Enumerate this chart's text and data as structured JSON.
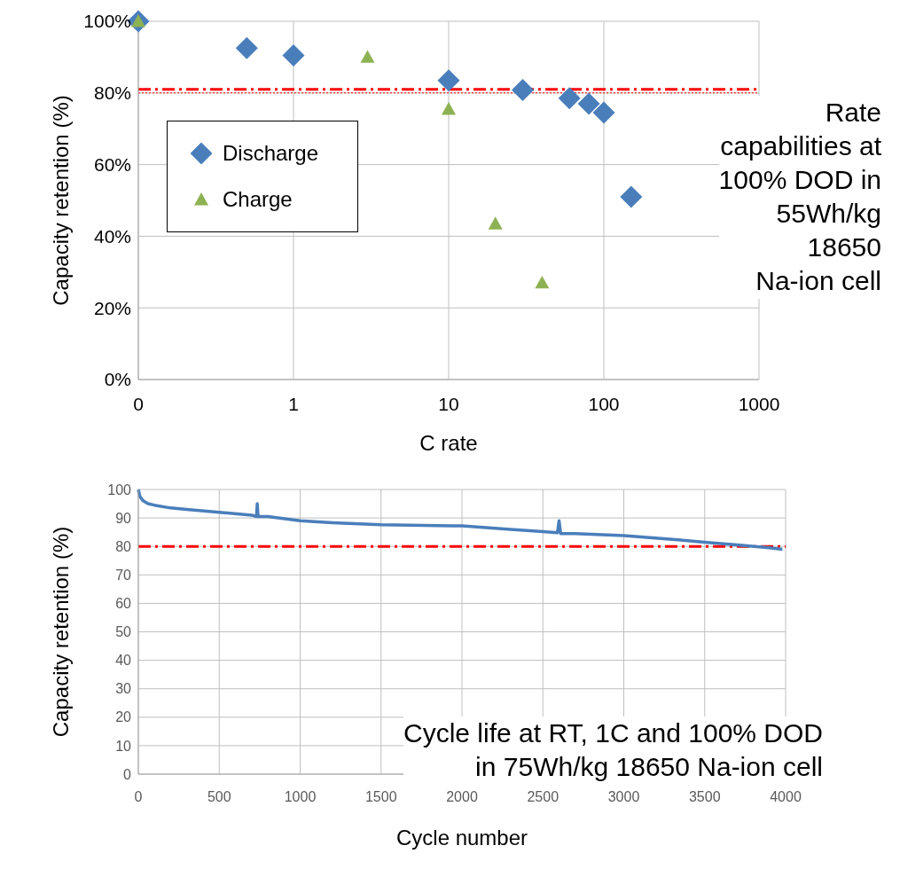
{
  "chart_data": [
    {
      "type": "scatter",
      "xlabel": "C rate",
      "ylabel": "Capacity retention (%)",
      "log": "x",
      "xlim": [
        0.1,
        1000
      ],
      "xticks": [
        {
          "value": 0.1,
          "label": "0"
        },
        1,
        10,
        100,
        1000
      ],
      "ylim": [
        0,
        100
      ],
      "yticks": [
        {
          "value": 0,
          "label": "0%"
        },
        {
          "value": 20,
          "label": "20%"
        },
        {
          "value": 40,
          "label": "40%"
        },
        {
          "value": 60,
          "label": "60%"
        },
        {
          "value": 80,
          "label": "80%"
        },
        {
          "value": 100,
          "label": "100%"
        }
      ],
      "grid": true,
      "legend": "left",
      "series": [
        {
          "name": "Discharge",
          "color": "#4a7ebb",
          "marker": "diamond",
          "x": [
            0.1,
            0.5,
            1,
            10,
            30,
            60,
            80,
            100,
            150
          ],
          "values": [
            100,
            92.5,
            90.5,
            83.5,
            80.8,
            78.5,
            77,
            74.5,
            51
          ]
        },
        {
          "name": "Charge",
          "color": "#8db254",
          "marker": "triangle",
          "x": [
            0.1,
            3,
            10,
            20,
            40
          ],
          "values": [
            100,
            90,
            75.5,
            43.5,
            27
          ]
        }
      ],
      "ref_lines": [
        {
          "axis": "y",
          "value": 81,
          "color": "#ff0000",
          "line_style": "dashed"
        },
        {
          "axis": "y",
          "value": 80,
          "color": "#ff0000",
          "line_style": "dotted"
        }
      ],
      "annotations": [
        "Rate\ncapabilities at\n100% DOD in\n55Wh/kg\n18650\nNa-ion cell"
      ]
    },
    {
      "type": "line",
      "xlabel": "Cycle number",
      "ylabel": "Capacity retention (%)",
      "xlim": [
        0,
        4000
      ],
      "xticks": [
        0,
        500,
        1000,
        1500,
        2000,
        2500,
        3000,
        3500,
        4000
      ],
      "ylim": [
        0,
        100
      ],
      "yticks": [
        0,
        10,
        20,
        30,
        40,
        50,
        60,
        70,
        80,
        90,
        100
      ],
      "grid": true,
      "series": [
        {
          "color": "#4a7ebb",
          "x": [
            0,
            10,
            30,
            60,
            100,
            200,
            300,
            500,
            700,
            730,
            735,
            740,
            800,
            1000,
            1200,
            1500,
            2000,
            2300,
            2500,
            2590,
            2600,
            2610,
            2700,
            3000,
            3300,
            3500,
            3700,
            3900,
            3980
          ],
          "values": [
            100,
            97.5,
            96,
            95,
            94.5,
            93.5,
            93,
            92,
            91,
            90.5,
            95,
            90.5,
            90.5,
            89,
            88.3,
            87.6,
            87.2,
            86,
            85.2,
            84.8,
            89,
            84.5,
            84.5,
            83.8,
            82.5,
            81.5,
            80.5,
            79.5,
            79
          ]
        }
      ],
      "ref_lines": [
        {
          "axis": "y",
          "value": 80,
          "color": "#ff0000",
          "line_style": "dashed"
        }
      ],
      "annotations": [
        "Cycle life at RT, 1C and 100% DOD\nin 75Wh/kg 18650 Na-ion cell"
      ]
    }
  ]
}
